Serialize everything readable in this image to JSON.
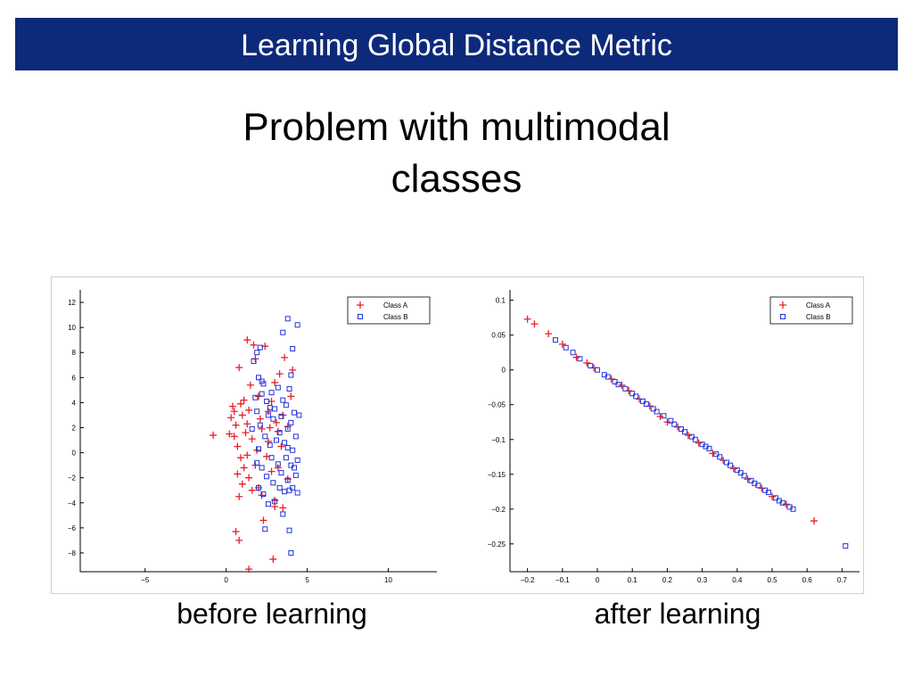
{
  "slide": {
    "title": "Learning Global Distance Metric",
    "subtitle_line1": "Problem with multimodal",
    "subtitle_line2": "classes",
    "caption_left": "before learning",
    "caption_right": "after learning"
  },
  "colors": {
    "class_a": "#e8202a",
    "class_b": "#2233d6",
    "title_bg": "#0d2a7a"
  },
  "chart_data": [
    {
      "type": "scatter",
      "title": "",
      "xlabel": "",
      "ylabel": "",
      "xlim": [
        -9,
        13
      ],
      "ylim": [
        -9.5,
        13
      ],
      "xticks": [
        -5,
        0,
        5,
        10
      ],
      "xtick_labels": [
        "−5",
        "0",
        "5",
        "10"
      ],
      "yticks": [
        -8,
        -6,
        -4,
        -2,
        0,
        2,
        4,
        6,
        8,
        10,
        12
      ],
      "ytick_labels": [
        "−8",
        "−6",
        "−4",
        "−2",
        "0",
        "2",
        "4",
        "6",
        "8",
        "10",
        "12"
      ],
      "legend": "top-right",
      "series": [
        {
          "name": "Class A",
          "marker": "plus",
          "points": [
            [
              -0.8,
              1.4
            ],
            [
              0.2,
              1.5
            ],
            [
              0.3,
              2.8
            ],
            [
              0.4,
              3.7
            ],
            [
              0.5,
              1.3
            ],
            [
              0.6,
              2.2
            ],
            [
              0.7,
              0.5
            ],
            [
              0.8,
              6.8
            ],
            [
              0.9,
              3.9
            ],
            [
              1.0,
              3.0
            ],
            [
              1.1,
              4.2
            ],
            [
              1.2,
              1.6
            ],
            [
              1.3,
              2.3
            ],
            [
              1.4,
              3.4
            ],
            [
              1.5,
              5.4
            ],
            [
              1.6,
              1.1
            ],
            [
              1.3,
              9.0
            ],
            [
              1.7,
              8.6
            ],
            [
              1.8,
              7.5
            ],
            [
              2.0,
              4.5
            ],
            [
              2.1,
              2.7
            ],
            [
              2.2,
              1.9
            ],
            [
              2.4,
              8.5
            ],
            [
              2.6,
              3.3
            ],
            [
              2.8,
              4.1
            ],
            [
              3.0,
              5.6
            ],
            [
              3.1,
              2.4
            ],
            [
              3.2,
              1.7
            ],
            [
              3.3,
              6.3
            ],
            [
              3.5,
              3.0
            ],
            [
              3.6,
              7.6
            ],
            [
              3.8,
              2.1
            ],
            [
              4.0,
              4.5
            ],
            [
              4.1,
              6.6
            ],
            [
              0.7,
              -1.7
            ],
            [
              0.9,
              -0.4
            ],
            [
              1.0,
              -2.5
            ],
            [
              1.1,
              -1.2
            ],
            [
              1.3,
              -0.2
            ],
            [
              1.4,
              -2.0
            ],
            [
              1.6,
              -3.0
            ],
            [
              1.8,
              -1.0
            ],
            [
              2.0,
              -2.8
            ],
            [
              2.2,
              -3.4
            ],
            [
              2.5,
              -0.3
            ],
            [
              2.8,
              -1.5
            ],
            [
              3.0,
              -3.8
            ],
            [
              3.2,
              -1.2
            ],
            [
              3.5,
              -4.4
            ],
            [
              3.8,
              -2.1
            ],
            [
              0.8,
              -3.5
            ],
            [
              2.3,
              -5.4
            ],
            [
              0.6,
              -6.3
            ],
            [
              0.8,
              -7.0
            ],
            [
              3.0,
              -4.3
            ],
            [
              1.4,
              -9.3
            ],
            [
              2.9,
              -8.5
            ],
            [
              2.6,
              0.9
            ],
            [
              3.4,
              0.5
            ],
            [
              1.9,
              0.2
            ],
            [
              0.5,
              3.3
            ],
            [
              2.7,
              2.0
            ]
          ]
        },
        {
          "name": "Class B",
          "marker": "square",
          "points": [
            [
              1.6,
              1.9
            ],
            [
              1.8,
              4.4
            ],
            [
              1.9,
              3.3
            ],
            [
              2.0,
              0.3
            ],
            [
              2.1,
              2.2
            ],
            [
              2.2,
              4.7
            ],
            [
              2.3,
              5.5
            ],
            [
              2.4,
              1.3
            ],
            [
              2.5,
              4.1
            ],
            [
              2.6,
              3.0
            ],
            [
              2.7,
              0.6
            ],
            [
              2.8,
              4.8
            ],
            [
              2.9,
              2.7
            ],
            [
              3.0,
              3.5
            ],
            [
              3.1,
              1.0
            ],
            [
              3.2,
              5.2
            ],
            [
              3.3,
              1.6
            ],
            [
              3.4,
              2.9
            ],
            [
              3.5,
              4.2
            ],
            [
              3.6,
              0.8
            ],
            [
              3.7,
              3.8
            ],
            [
              3.8,
              1.9
            ],
            [
              3.9,
              5.1
            ],
            [
              4.0,
              2.4
            ],
            [
              4.1,
              0.2
            ],
            [
              4.2,
              3.2
            ],
            [
              4.3,
              1.3
            ],
            [
              4.4,
              -0.6
            ],
            [
              4.5,
              3.0
            ],
            [
              1.7,
              7.3
            ],
            [
              1.9,
              8.0
            ],
            [
              2.0,
              6.0
            ],
            [
              2.1,
              8.4
            ],
            [
              2.2,
              5.7
            ],
            [
              3.5,
              9.6
            ],
            [
              3.8,
              10.7
            ],
            [
              4.4,
              10.2
            ],
            [
              4.1,
              8.3
            ],
            [
              4.0,
              6.2
            ],
            [
              1.9,
              -0.8
            ],
            [
              2.0,
              -2.8
            ],
            [
              2.2,
              -1.2
            ],
            [
              2.3,
              -3.3
            ],
            [
              2.5,
              -1.9
            ],
            [
              2.6,
              -4.1
            ],
            [
              2.8,
              -0.4
            ],
            [
              2.9,
              -2.4
            ],
            [
              3.0,
              -3.9
            ],
            [
              3.2,
              -0.9
            ],
            [
              3.3,
              -2.8
            ],
            [
              3.4,
              -1.6
            ],
            [
              3.5,
              -4.9
            ],
            [
              3.6,
              -3.1
            ],
            [
              3.7,
              -0.4
            ],
            [
              3.8,
              -2.2
            ],
            [
              3.9,
              -3.0
            ],
            [
              4.0,
              -1.0
            ],
            [
              4.1,
              -2.8
            ],
            [
              4.3,
              -1.8
            ],
            [
              4.4,
              -3.2
            ],
            [
              2.4,
              -6.1
            ],
            [
              3.9,
              -6.2
            ],
            [
              4.0,
              -8.0
            ],
            [
              3.8,
              0.4
            ],
            [
              4.2,
              -1.2
            ],
            [
              2.7,
              3.6
            ]
          ]
        }
      ]
    },
    {
      "type": "scatter",
      "title": "",
      "xlabel": "",
      "ylabel": "",
      "xlim": [
        -0.25,
        0.75
      ],
      "ylim": [
        -0.29,
        0.115
      ],
      "xticks": [
        -0.2,
        -0.1,
        0,
        0.1,
        0.2,
        0.3,
        0.4,
        0.5,
        0.6,
        0.7
      ],
      "xtick_labels": [
        "−0.2",
        "−0.1",
        "0",
        "0.1",
        "0.2",
        "0.3",
        "0.4",
        "0.5",
        "0.6",
        "0.7"
      ],
      "yticks": [
        0.1,
        0.05,
        0,
        -0.05,
        -0.1,
        -0.15,
        -0.2,
        -0.25
      ],
      "ytick_labels": [
        "0.1",
        "0.05",
        "0",
        "−0.05",
        "−0.1",
        "−0.15",
        "−0.2",
        "−0.25"
      ],
      "legend": "top-right",
      "series": [
        {
          "name": "Class A",
          "marker": "plus",
          "points": [
            [
              -0.2,
              0.073
            ],
            [
              -0.18,
              0.066
            ],
            [
              -0.14,
              0.052
            ],
            [
              -0.1,
              0.037
            ],
            [
              -0.06,
              0.018
            ],
            [
              -0.01,
              0.003
            ],
            [
              0.04,
              -0.013
            ],
            [
              0.09,
              -0.03
            ],
            [
              0.12,
              -0.042
            ],
            [
              0.18,
              -0.067
            ],
            [
              0.23,
              -0.082
            ],
            [
              0.29,
              -0.105
            ],
            [
              0.33,
              -0.12
            ],
            [
              0.39,
              -0.142
            ],
            [
              0.43,
              -0.157
            ],
            [
              0.47,
              -0.17
            ],
            [
              0.5,
              -0.182
            ],
            [
              0.54,
              -0.193
            ],
            [
              0.62,
              -0.217
            ],
            [
              0.07,
              -0.022
            ],
            [
              0.15,
              -0.052
            ],
            [
              0.26,
              -0.094
            ],
            [
              0.36,
              -0.13
            ],
            [
              -0.03,
              0.01
            ],
            [
              0.2,
              -0.075
            ]
          ]
        },
        {
          "name": "Class B",
          "marker": "square",
          "points": [
            [
              -0.12,
              0.043
            ],
            [
              -0.09,
              0.032
            ],
            [
              -0.07,
              0.025
            ],
            [
              -0.05,
              0.016
            ],
            [
              -0.02,
              0.006
            ],
            [
              0.0,
              0.0
            ],
            [
              0.02,
              -0.007
            ],
            [
              0.03,
              -0.01
            ],
            [
              0.05,
              -0.017
            ],
            [
              0.06,
              -0.021
            ],
            [
              0.08,
              -0.027
            ],
            [
              0.1,
              -0.034
            ],
            [
              0.11,
              -0.038
            ],
            [
              0.13,
              -0.045
            ],
            [
              0.14,
              -0.049
            ],
            [
              0.16,
              -0.056
            ],
            [
              0.17,
              -0.06
            ],
            [
              0.19,
              -0.066
            ],
            [
              0.21,
              -0.073
            ],
            [
              0.22,
              -0.078
            ],
            [
              0.24,
              -0.085
            ],
            [
              0.25,
              -0.089
            ],
            [
              0.27,
              -0.096
            ],
            [
              0.28,
              -0.1
            ],
            [
              0.3,
              -0.107
            ],
            [
              0.31,
              -0.11
            ],
            [
              0.32,
              -0.113
            ],
            [
              0.34,
              -0.121
            ],
            [
              0.35,
              -0.125
            ],
            [
              0.37,
              -0.133
            ],
            [
              0.38,
              -0.137
            ],
            [
              0.4,
              -0.144
            ],
            [
              0.41,
              -0.148
            ],
            [
              0.42,
              -0.152
            ],
            [
              0.44,
              -0.159
            ],
            [
              0.45,
              -0.163
            ],
            [
              0.46,
              -0.166
            ],
            [
              0.48,
              -0.173
            ],
            [
              0.49,
              -0.176
            ],
            [
              0.51,
              -0.184
            ],
            [
              0.52,
              -0.188
            ],
            [
              0.53,
              -0.191
            ],
            [
              0.55,
              -0.197
            ],
            [
              0.56,
              -0.2
            ],
            [
              0.71,
              -0.253
            ]
          ]
        }
      ]
    }
  ]
}
